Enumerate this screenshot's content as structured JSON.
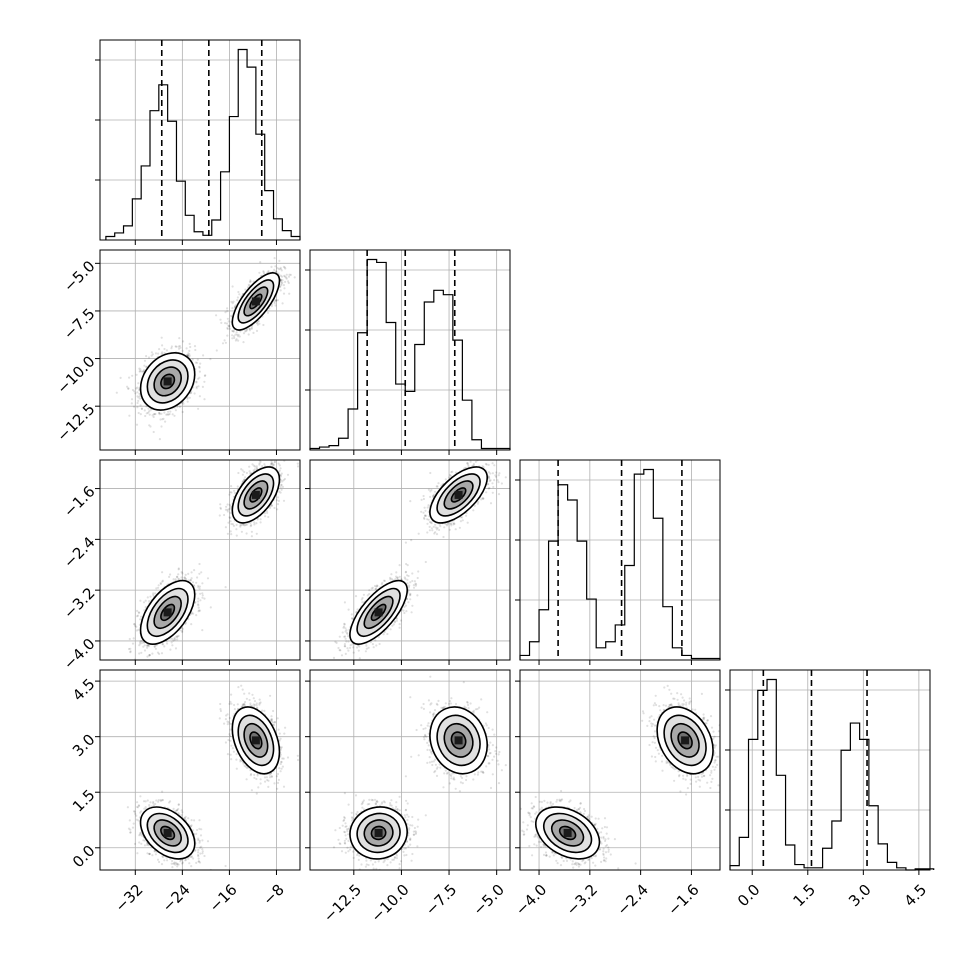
{
  "chart_data": {
    "type": "corner",
    "grid": true,
    "parameters": [
      {
        "range": [
          -38,
          -4
        ],
        "ticks": [
          "−32",
          "−24",
          "−16",
          "−8"
        ],
        "tick_values": [
          -32,
          -24,
          -16,
          -8
        ],
        "quantiles": [
          -27.5,
          -19.5,
          -10.5
        ],
        "hist": {
          "edges_start": -37,
          "bin_width": 1.5,
          "counts": [
            3,
            6,
            12,
            35,
            63,
            110,
            132,
            101,
            50,
            21,
            7,
            4,
            17,
            58,
            105,
            162,
            147,
            90,
            42,
            18,
            8,
            3
          ]
        },
        "modes": [
          {
            "mean": -26.5,
            "sd": 2.3
          },
          {
            "mean": -11.5,
            "sd": 2.0
          }
        ]
      },
      {
        "range": [
          -14.8,
          -4.3
        ],
        "ticks": [
          "−12.5",
          "−10.0",
          "−7.5",
          "−5.0"
        ],
        "tick_values": [
          -12.5,
          -10.0,
          -7.5,
          -5.0
        ],
        "quantiles": [
          -11.8,
          -9.8,
          -7.2
        ],
        "hist": {
          "edges_start": -14.8,
          "bin_width": 0.5,
          "counts": [
            1,
            2,
            3,
            8,
            28,
            80,
            130,
            128,
            87,
            45,
            40,
            72,
            101,
            109,
            106,
            75,
            34,
            7,
            1,
            1,
            1
          ]
        },
        "modes": [
          {
            "mean": -11.2,
            "sd": 0.75
          },
          {
            "mean": -7.0,
            "sd": 0.75
          }
        ]
      },
      {
        "range": [
          -4.3,
          -1.15
        ],
        "ticks": [
          "−4.0",
          "−3.2",
          "−2.4",
          "−1.6"
        ],
        "tick_values": [
          -4.0,
          -3.2,
          -2.4,
          -1.6
        ],
        "quantiles": [
          -3.7,
          -2.7,
          -1.75
        ],
        "hist": {
          "edges_start": -4.3,
          "bin_width": 0.15,
          "counts": [
            3,
            12,
            33,
            78,
            115,
            105,
            78,
            40,
            8,
            12,
            23,
            62,
            122,
            125,
            93,
            35,
            8,
            3,
            1,
            1,
            1
          ]
        },
        "modes": [
          {
            "mean": -3.55,
            "sd": 0.25
          },
          {
            "mean": -1.7,
            "sd": 0.22
          }
        ]
      },
      {
        "range": [
          -0.6,
          4.8
        ],
        "ticks": [
          "0.0",
          "1.5",
          "3.0",
          "4.5"
        ],
        "tick_values": [
          0.0,
          1.5,
          3.0,
          4.5
        ],
        "quantiles": [
          0.3,
          1.6,
          3.1
        ],
        "hist": {
          "edges_start": -0.6,
          "bin_width": 0.25,
          "counts": [
            4,
            30,
            120,
            165,
            175,
            87,
            23,
            5,
            2,
            2,
            20,
            45,
            110,
            135,
            120,
            59,
            24,
            7,
            2,
            0,
            1,
            1
          ]
        },
        "modes": [
          {
            "mean": 0.4,
            "sd": 0.35
          },
          {
            "mean": 2.9,
            "sd": 0.45
          }
        ]
      }
    ],
    "pairs": [
      {
        "row": 1,
        "col": 0,
        "rho": [
          0.25,
          0.72
        ]
      },
      {
        "row": 2,
        "col": 0,
        "rho": [
          0.55,
          0.55
        ]
      },
      {
        "row": 2,
        "col": 1,
        "rho": [
          0.7,
          0.62
        ]
      },
      {
        "row": 3,
        "col": 0,
        "rho": [
          -0.4,
          -0.35
        ]
      },
      {
        "row": 3,
        "col": 1,
        "rho": [
          0.05,
          -0.15
        ]
      },
      {
        "row": 3,
        "col": 2,
        "rho": [
          -0.35,
          -0.3
        ]
      }
    ]
  }
}
